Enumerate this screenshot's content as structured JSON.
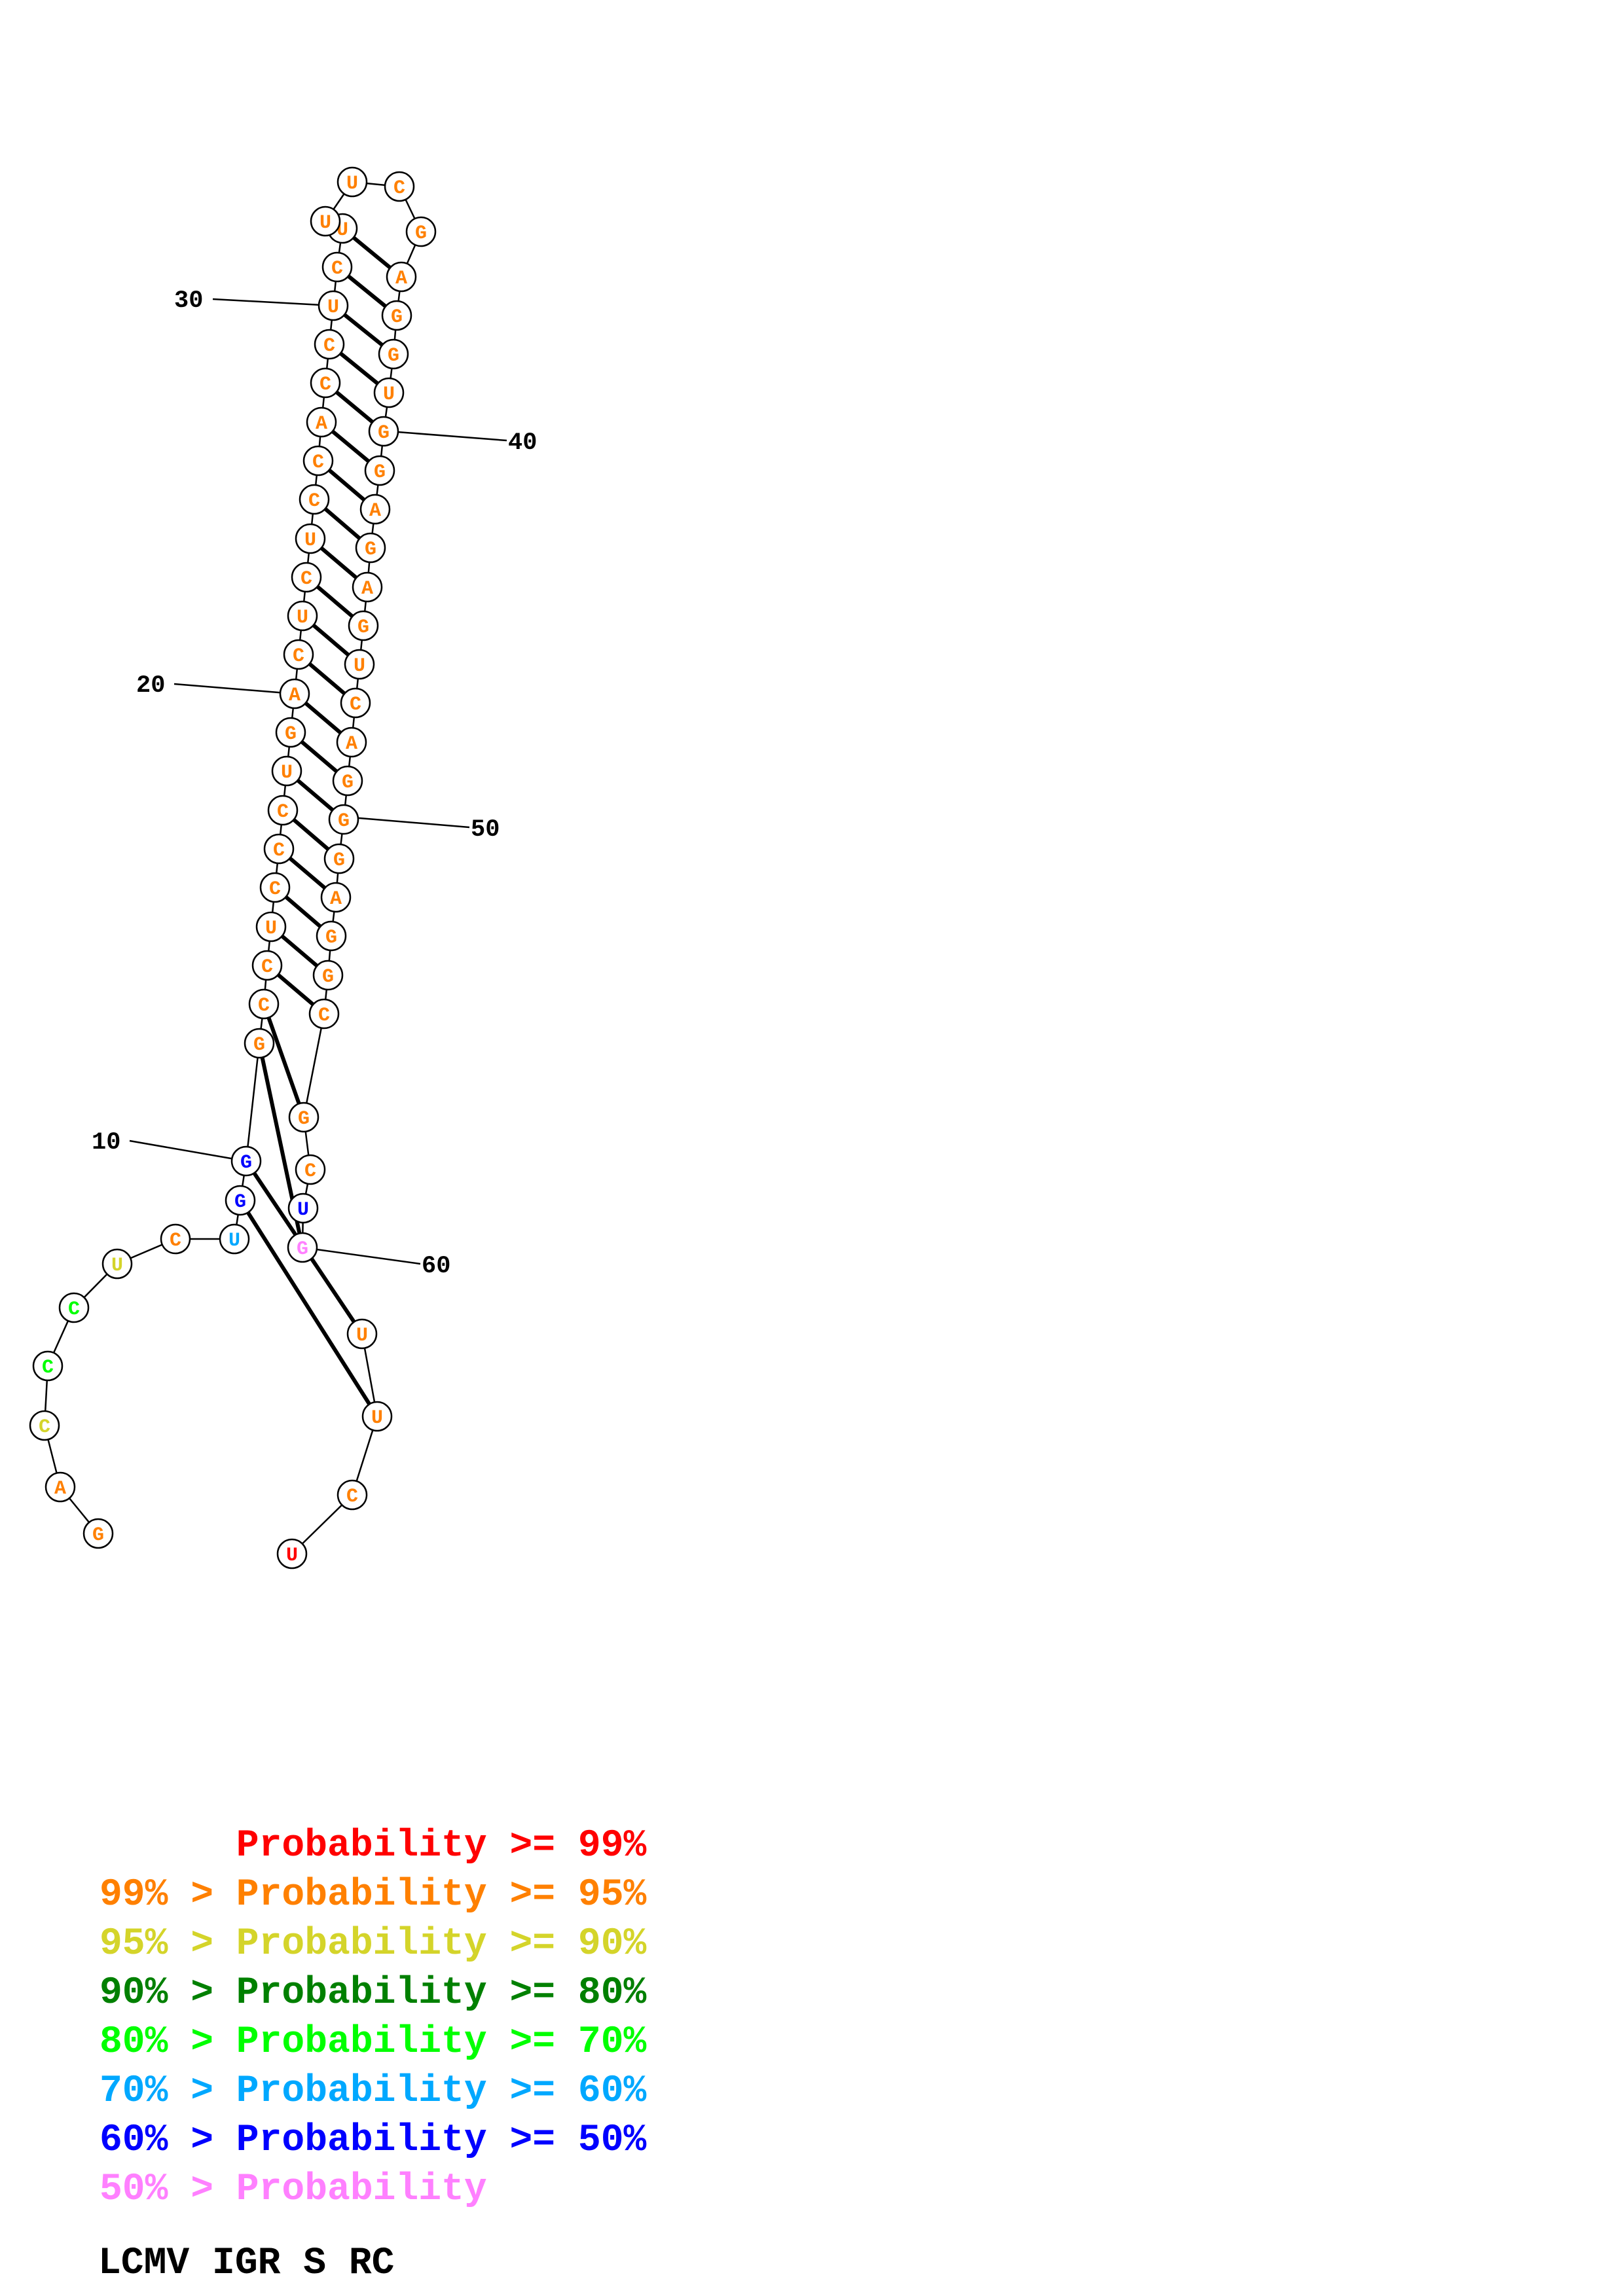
{
  "sequence": [
    "G",
    "A",
    "C",
    "C",
    "C",
    "U",
    "C",
    "U",
    "G",
    "G",
    "G",
    "C",
    "C",
    "U",
    "C",
    "C",
    "C",
    "U",
    "G",
    "A",
    "C",
    "U",
    "C",
    "U",
    "C",
    "C",
    "A",
    "C",
    "C",
    "U",
    "C",
    "U",
    "U",
    "U",
    "C",
    "G",
    "A",
    "G",
    "G",
    "U",
    "G",
    "G",
    "A",
    "G",
    "A",
    "G",
    "U",
    "C",
    "A",
    "G",
    "G",
    "G",
    "A",
    "G",
    "G",
    "C",
    "G",
    "C",
    "U",
    "G",
    "U",
    "U",
    "C",
    "U"
  ],
  "probability_class": [
    1,
    1,
    2,
    4,
    4,
    2,
    1,
    5,
    6,
    6,
    1,
    1,
    1,
    1,
    1,
    1,
    1,
    1,
    1,
    1,
    1,
    1,
    1,
    1,
    1,
    1,
    1,
    1,
    1,
    1,
    1,
    1,
    1,
    1,
    1,
    1,
    1,
    1,
    1,
    1,
    1,
    1,
    1,
    1,
    1,
    1,
    1,
    1,
    1,
    1,
    1,
    1,
    1,
    1,
    1,
    1,
    1,
    1,
    6,
    7,
    1,
    1,
    1,
    0
  ],
  "probability_class_base": 0,
  "base_pairs": [
    [
      8,
      61
    ],
    [
      9,
      60
    ],
    [
      10,
      59
    ],
    [
      11,
      56
    ],
    [
      12,
      55
    ],
    [
      13,
      54
    ],
    [
      14,
      53
    ],
    [
      15,
      52
    ],
    [
      16,
      51
    ],
    [
      17,
      50
    ],
    [
      18,
      49
    ],
    [
      19,
      48
    ],
    [
      20,
      47
    ],
    [
      21,
      46
    ],
    [
      22,
      45
    ],
    [
      23,
      44
    ],
    [
      24,
      43
    ],
    [
      25,
      42
    ],
    [
      26,
      41
    ],
    [
      27,
      40
    ],
    [
      28,
      39
    ],
    [
      29,
      38
    ],
    [
      30,
      37
    ],
    [
      31,
      36
    ]
  ],
  "position_numbers": [
    {
      "label": "10",
      "index": 9
    },
    {
      "label": "20",
      "index": 19
    },
    {
      "label": "30",
      "index": 29
    },
    {
      "label": "40",
      "index": 39
    },
    {
      "label": "50",
      "index": 49
    },
    {
      "label": "60",
      "index": 59
    }
  ],
  "legend": [
    {
      "prefix": "",
      "label": "Probability >= 99%",
      "color": "#ff0000"
    },
    {
      "prefix": "99% > ",
      "label": "Probability >= 95%",
      "color": "#ff8000"
    },
    {
      "prefix": "95% > ",
      "label": "Probability >= 90%",
      "color": "#d4d42a"
    },
    {
      "prefix": "90% > ",
      "label": "Probability >= 80%",
      "color": "#008000"
    },
    {
      "prefix": "80% > ",
      "label": "Probability >= 70%",
      "color": "#00ff00"
    },
    {
      "prefix": "70% > ",
      "label": "Probability >= 60%",
      "color": "#00a8ff"
    },
    {
      "prefix": "60% > ",
      "label": "Probability >= 50%",
      "color": "#0000ff"
    },
    {
      "prefix": "50% > ",
      "label": "Probability",
      "color": "#ff80ff"
    }
  ],
  "caption": "LCMV IGR S RC"
}
